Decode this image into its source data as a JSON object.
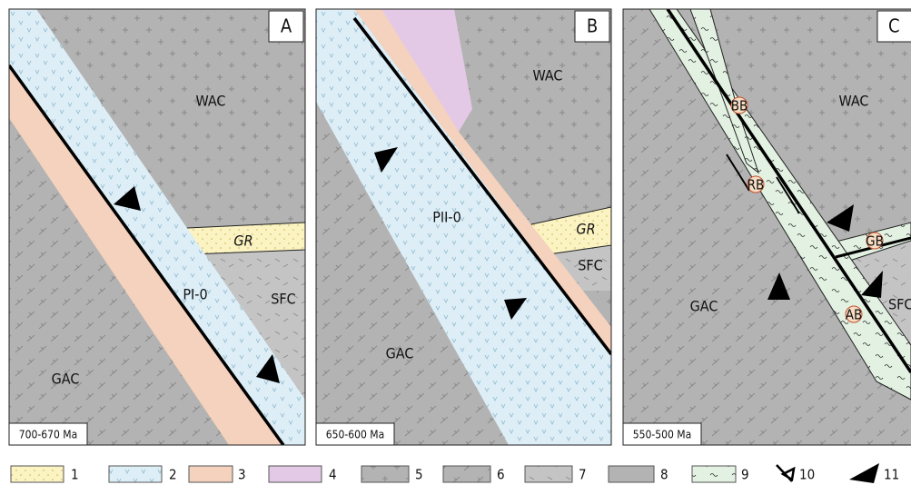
{
  "panels": [
    {
      "letter": "A",
      "age": "700-670 Ma",
      "labels": {
        "wac": "WAC",
        "gr": "GR",
        "sfc": "SFC",
        "gac": "GAC",
        "ocean": "PI-0"
      }
    },
    {
      "letter": "B",
      "age": "650-600 Ma",
      "labels": {
        "wac": "WAC",
        "gr": "GR",
        "sfc": "SFC",
        "gac": "GAC",
        "ocean": "PII-0"
      }
    },
    {
      "letter": "C",
      "age": "550-500 Ma",
      "labels": {
        "wac": "WAC",
        "sfc": "SFC",
        "gac": "GAC",
        "bb": "BB",
        "rb": "RB",
        "gb": "GB",
        "ab": "AB"
      }
    }
  ],
  "legend": {
    "items": [
      "1",
      "2",
      "3",
      "4",
      "5",
      "6",
      "7",
      "8",
      "9",
      "10",
      "11"
    ]
  }
}
